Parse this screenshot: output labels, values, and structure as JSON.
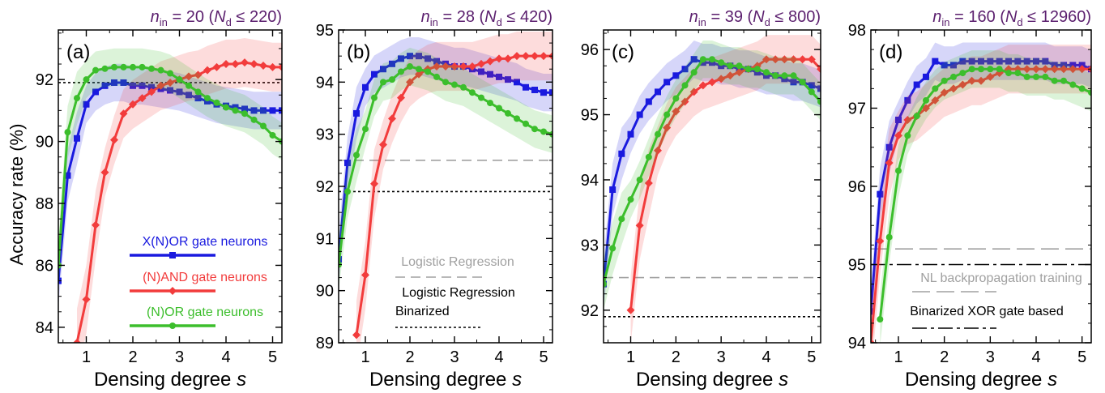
{
  "chart_data": [
    {
      "type": "line",
      "panel_label": "(a)",
      "title": {
        "n_in": "20",
        "N_d": "220"
      },
      "xlabel": "Densing degree s",
      "ylabel": "Accuracy rate (%)",
      "xlim": [
        0.4,
        5.2
      ],
      "ylim": [
        83.5,
        93.6
      ],
      "yticks": [
        84,
        86,
        88,
        90,
        92
      ],
      "xticks": [
        1,
        2,
        3,
        4,
        5
      ],
      "legend_position": "center-left",
      "hlines": [
        {
          "label": "Logistic Regression Binarized",
          "value": 91.9,
          "style": "dotted",
          "color": "#000000"
        }
      ],
      "series": [
        {
          "name": "X(N)OR gate neurons",
          "color": "#1a1adf",
          "marker": "square",
          "x": [
            0.4,
            0.6,
            0.8,
            1.0,
            1.2,
            1.4,
            1.6,
            1.8,
            2.0,
            2.2,
            2.4,
            2.6,
            2.8,
            3.0,
            3.2,
            3.4,
            3.6,
            3.8,
            4.0,
            4.2,
            4.4,
            4.6,
            4.8,
            5.0,
            5.2
          ],
          "y": [
            85.5,
            88.9,
            90.1,
            91.2,
            91.6,
            91.8,
            91.9,
            91.9,
            91.8,
            91.8,
            91.75,
            91.7,
            91.65,
            91.6,
            91.5,
            91.4,
            91.3,
            91.2,
            91.15,
            91.1,
            91.05,
            91.0,
            91.0,
            91.0,
            91.0
          ]
        },
        {
          "name": "(N)AND gate neurons",
          "color": "#f23c3c",
          "marker": "diamond",
          "x": [
            0.8,
            1.0,
            1.2,
            1.4,
            1.6,
            1.8,
            2.0,
            2.2,
            2.4,
            2.6,
            2.8,
            3.0,
            3.2,
            3.4,
            3.6,
            3.8,
            4.0,
            4.2,
            4.4,
            4.6,
            4.8,
            5.0,
            5.2
          ],
          "y": [
            83.5,
            84.9,
            87.3,
            89.0,
            90.05,
            90.9,
            91.2,
            91.4,
            91.6,
            91.8,
            91.9,
            92.0,
            92.1,
            92.15,
            92.3,
            92.4,
            92.5,
            92.5,
            92.55,
            92.5,
            92.45,
            92.4,
            92.4
          ]
        },
        {
          "name": "(N)OR gate neurons",
          "color": "#3cbe2c",
          "marker": "circle",
          "x": [
            0.4,
            0.6,
            0.8,
            1.0,
            1.2,
            1.4,
            1.6,
            1.8,
            2.0,
            2.2,
            2.4,
            2.6,
            2.8,
            3.0,
            3.2,
            3.4,
            3.6,
            3.8,
            4.0,
            4.2,
            4.4,
            4.6,
            4.8,
            5.0,
            5.2
          ],
          "y": [
            86.0,
            90.3,
            91.4,
            92.0,
            92.3,
            92.35,
            92.4,
            92.4,
            92.4,
            92.4,
            92.35,
            92.3,
            92.2,
            92.0,
            91.8,
            91.6,
            91.4,
            91.25,
            91.1,
            91.0,
            90.9,
            90.7,
            90.5,
            90.2,
            90.0
          ]
        }
      ]
    },
    {
      "type": "line",
      "panel_label": "(b)",
      "title": {
        "n_in": "28",
        "N_d": "420"
      },
      "xlabel": "Densing degree s",
      "ylabel": "",
      "xlim": [
        0.4,
        5.2
      ],
      "ylim": [
        89.0,
        95.0
      ],
      "yticks": [
        89,
        90,
        91,
        92,
        93,
        94,
        95
      ],
      "xticks": [
        1,
        2,
        3,
        4,
        5
      ],
      "legend_position": "bottom-center",
      "hlines": [
        {
          "label": "Logistic Regression",
          "value": 92.5,
          "style": "dashed",
          "color": "#a0a0a0"
        },
        {
          "label": "Logistic Regression Binarized",
          "value": 91.9,
          "style": "dotted",
          "color": "#000000"
        }
      ],
      "series": [
        {
          "name": "X(N)OR gate neurons",
          "color": "#1a1adf",
          "marker": "square",
          "x": [
            0.4,
            0.6,
            0.8,
            1.0,
            1.2,
            1.4,
            1.6,
            1.8,
            2.0,
            2.2,
            2.4,
            2.6,
            2.8,
            3.0,
            3.2,
            3.4,
            3.6,
            3.8,
            4.0,
            4.2,
            4.4,
            4.6,
            4.8,
            5.0,
            5.2
          ],
          "y": [
            90.6,
            92.45,
            93.4,
            93.9,
            94.15,
            94.25,
            94.35,
            94.45,
            94.5,
            94.5,
            94.45,
            94.4,
            94.35,
            94.3,
            94.3,
            94.25,
            94.2,
            94.15,
            94.1,
            94.05,
            94.0,
            93.9,
            93.85,
            93.8,
            93.8
          ]
        },
        {
          "name": "(N)AND gate neurons",
          "color": "#f23c3c",
          "marker": "diamond",
          "x": [
            0.8,
            1.0,
            1.2,
            1.4,
            1.6,
            1.8,
            2.0,
            2.2,
            2.4,
            2.6,
            2.8,
            3.0,
            3.2,
            3.4,
            3.6,
            3.8,
            4.0,
            4.2,
            4.4,
            4.6,
            4.8,
            5.0,
            5.2
          ],
          "y": [
            89.15,
            90.3,
            92.05,
            92.8,
            93.3,
            93.7,
            94.0,
            94.15,
            94.25,
            94.3,
            94.3,
            94.3,
            94.3,
            94.3,
            94.35,
            94.4,
            94.45,
            94.45,
            94.5,
            94.5,
            94.5,
            94.5,
            94.5
          ]
        },
        {
          "name": "(N)OR gate neurons",
          "color": "#3cbe2c",
          "marker": "circle",
          "x": [
            0.4,
            0.6,
            0.8,
            1.0,
            1.2,
            1.4,
            1.6,
            1.8,
            2.0,
            2.2,
            2.4,
            2.6,
            2.8,
            3.0,
            3.2,
            3.4,
            3.6,
            3.8,
            4.0,
            4.2,
            4.4,
            4.6,
            4.8,
            5.0,
            5.2
          ],
          "y": [
            90.5,
            91.9,
            92.6,
            93.1,
            93.7,
            94.0,
            94.05,
            94.2,
            94.3,
            94.25,
            94.2,
            94.1,
            94.0,
            93.95,
            93.9,
            93.8,
            93.7,
            93.6,
            93.5,
            93.4,
            93.3,
            93.2,
            93.1,
            93.05,
            93.0
          ]
        }
      ]
    },
    {
      "type": "line",
      "panel_label": "(c)",
      "title": {
        "n_in": "39",
        "N_d": "800"
      },
      "xlabel": "Densing degree s",
      "ylabel": "",
      "xlim": [
        0.4,
        5.2
      ],
      "ylim": [
        91.5,
        96.3
      ],
      "yticks": [
        92,
        93,
        94,
        95,
        96
      ],
      "xticks": [
        1,
        2,
        3,
        4,
        5
      ],
      "hlines": [
        {
          "label": "Logistic Regression",
          "value": 92.5,
          "style": "dashed",
          "color": "#a0a0a0"
        },
        {
          "label": "Logistic Regression Binarized",
          "value": 91.9,
          "style": "dotted",
          "color": "#000000"
        }
      ],
      "series": [
        {
          "name": "X(N)OR gate neurons",
          "color": "#1a1adf",
          "marker": "square",
          "x": [
            0.4,
            0.6,
            0.8,
            1.0,
            1.2,
            1.4,
            1.6,
            1.8,
            2.0,
            2.2,
            2.4,
            2.6,
            2.8,
            3.0,
            3.2,
            3.4,
            3.6,
            3.8,
            4.0,
            4.2,
            4.4,
            4.6,
            4.8,
            5.0,
            5.2
          ],
          "y": [
            92.4,
            93.85,
            94.4,
            94.7,
            95.0,
            95.2,
            95.35,
            95.5,
            95.6,
            95.7,
            95.85,
            95.8,
            95.8,
            95.75,
            95.75,
            95.7,
            95.7,
            95.65,
            95.6,
            95.6,
            95.55,
            95.5,
            95.5,
            95.45,
            95.4
          ]
        },
        {
          "name": "(N)AND gate neurons",
          "color": "#f23c3c",
          "marker": "diamond",
          "x": [
            1.0,
            1.2,
            1.4,
            1.6,
            1.8,
            2.0,
            2.2,
            2.4,
            2.6,
            2.8,
            3.0,
            3.2,
            3.4,
            3.6,
            3.8,
            4.0,
            4.2,
            4.4,
            4.6,
            4.8,
            5.0,
            5.2
          ],
          "y": [
            92.0,
            93.3,
            93.95,
            94.45,
            94.8,
            95.05,
            95.2,
            95.35,
            95.45,
            95.5,
            95.55,
            95.6,
            95.65,
            95.7,
            95.75,
            95.85,
            95.85,
            95.85,
            95.85,
            95.85,
            95.85,
            95.7
          ]
        },
        {
          "name": "(N)OR gate neurons",
          "color": "#3cbe2c",
          "marker": "circle",
          "x": [
            0.4,
            0.6,
            0.8,
            1.0,
            1.2,
            1.4,
            1.6,
            1.8,
            2.0,
            2.2,
            2.4,
            2.6,
            2.8,
            3.0,
            3.2,
            3.4,
            3.6,
            3.8,
            4.0,
            4.2,
            4.4,
            4.6,
            4.8,
            5.0,
            5.2
          ],
          "y": [
            92.4,
            92.95,
            93.4,
            93.7,
            94.0,
            94.35,
            94.7,
            95.0,
            95.25,
            95.45,
            95.65,
            95.85,
            95.85,
            95.8,
            95.75,
            95.75,
            95.7,
            95.7,
            95.65,
            95.6,
            95.6,
            95.6,
            95.5,
            95.35,
            95.2
          ]
        }
      ]
    },
    {
      "type": "line",
      "panel_label": "(d)",
      "title": {
        "n_in": "160",
        "N_d": "12960"
      },
      "xlabel": "Densing degree s",
      "ylabel": "",
      "xlim": [
        0.4,
        5.2
      ],
      "ylim": [
        94.0,
        98.0
      ],
      "yticks": [
        94,
        95,
        96,
        97,
        98
      ],
      "xticks": [
        1,
        2,
        3,
        4,
        5
      ],
      "legend_position": "bottom-center",
      "hlines": [
        {
          "label": "NL backpropagation training",
          "value": 95.2,
          "style": "long-dashed",
          "color": "#a0a0a0"
        },
        {
          "label": "Binarized XOR gate based",
          "value": 95.0,
          "style": "dash-dot",
          "color": "#000000"
        }
      ],
      "series": [
        {
          "name": "X(N)OR gate neurons",
          "color": "#1a1adf",
          "marker": "square",
          "x": [
            0.4,
            0.6,
            0.8,
            1.0,
            1.2,
            1.4,
            1.6,
            1.8,
            2.0,
            2.2,
            2.4,
            2.6,
            2.8,
            3.0,
            3.2,
            3.4,
            3.6,
            3.8,
            4.0,
            4.2,
            4.4,
            4.6,
            4.8,
            5.0,
            5.2
          ],
          "y": [
            94.4,
            95.9,
            96.5,
            96.85,
            97.1,
            97.3,
            97.4,
            97.6,
            97.55,
            97.55,
            97.6,
            97.6,
            97.6,
            97.6,
            97.6,
            97.6,
            97.6,
            97.6,
            97.6,
            97.6,
            97.55,
            97.55,
            97.55,
            97.55,
            97.5
          ]
        },
        {
          "name": "(N)AND gate neurons",
          "color": "#f23c3c",
          "marker": "diamond",
          "x": [
            0.4,
            0.6,
            0.8,
            1.0,
            1.2,
            1.4,
            1.6,
            1.8,
            2.0,
            2.2,
            2.4,
            2.6,
            2.8,
            3.0,
            3.2,
            3.4,
            3.6,
            3.8,
            4.0,
            4.2,
            4.4,
            4.6,
            4.8,
            5.0,
            5.2
          ],
          "y": [
            94.0,
            95.3,
            96.3,
            96.65,
            96.85,
            96.9,
            97.0,
            97.1,
            97.2,
            97.25,
            97.3,
            97.35,
            97.35,
            97.4,
            97.45,
            97.5,
            97.5,
            97.5,
            97.5,
            97.5,
            97.5,
            97.5,
            97.5,
            97.5,
            97.5
          ]
        },
        {
          "name": "(N)OR gate neurons",
          "color": "#3cbe2c",
          "marker": "circle",
          "x": [
            0.6,
            0.8,
            1.0,
            1.2,
            1.4,
            1.6,
            1.8,
            2.0,
            2.2,
            2.4,
            2.6,
            2.8,
            3.0,
            3.2,
            3.4,
            3.6,
            3.8,
            4.0,
            4.2,
            4.4,
            4.6,
            4.8,
            5.0,
            5.2
          ],
          "y": [
            94.3,
            95.35,
            96.2,
            96.65,
            96.9,
            97.1,
            97.25,
            97.35,
            97.4,
            97.45,
            97.5,
            97.5,
            97.5,
            97.5,
            97.45,
            97.45,
            97.4,
            97.4,
            97.4,
            97.35,
            97.35,
            97.3,
            97.25,
            97.2
          ]
        }
      ]
    }
  ],
  "legend_a": {
    "xnor": "X(N)OR gate neurons",
    "nand": "(N)AND gate neurons",
    "nor": "(N)OR gate neurons"
  },
  "legend_b": {
    "lr": "Logistic Regression",
    "lrb_line1": "Logistic Regression",
    "lrb_line2": "Binarized"
  },
  "legend_d": {
    "nl": "NL backpropagation training",
    "bxor": "Binarized XOR gate based"
  },
  "title_prefix": "n",
  "title_sub_in": "in",
  "title_Nd_letter": "N",
  "title_sub_d": "d",
  "title_eq": " = ",
  "title_leq": " ≤ "
}
